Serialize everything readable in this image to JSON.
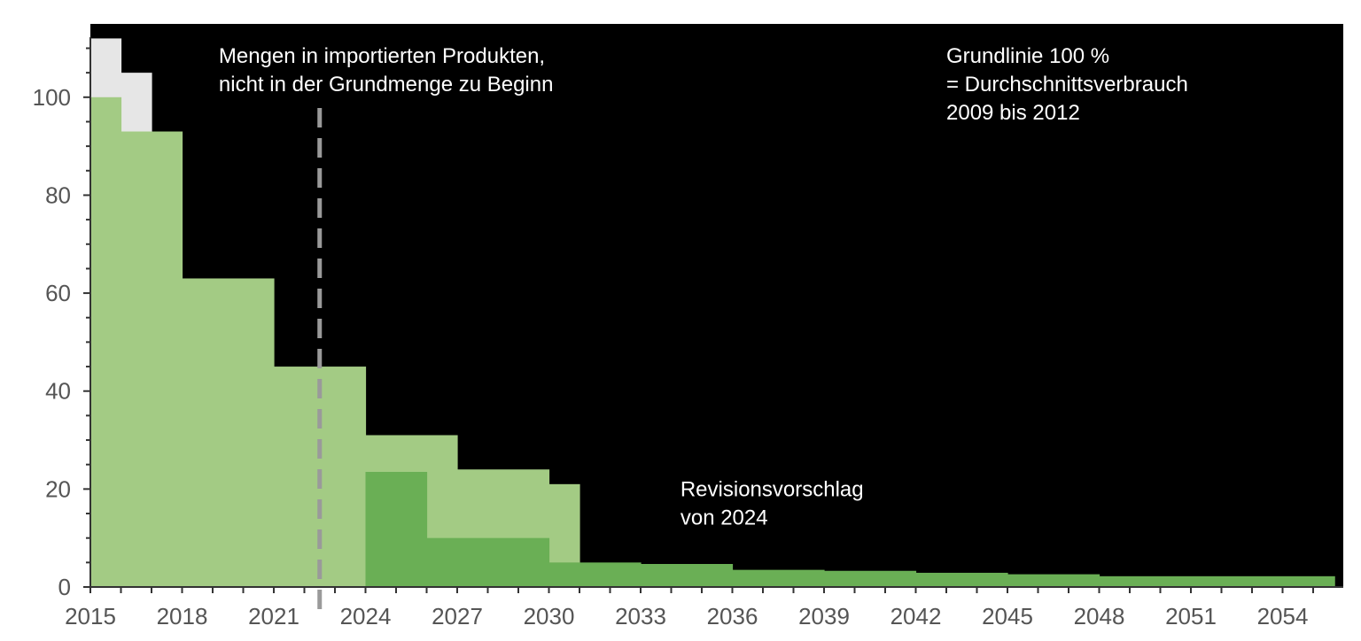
{
  "chart_data": {
    "type": "area",
    "title": "",
    "xlabel": "",
    "ylabel": "",
    "xlim": [
      2015,
      2055.7
    ],
    "ylim": [
      0,
      112
    ],
    "x_ticks": [
      "2015",
      "2018",
      "2021",
      "2024",
      "2027",
      "2030",
      "2033",
      "2036",
      "2039",
      "2042",
      "2045",
      "2048",
      "2051",
      "2054"
    ],
    "y_ticks": [
      "0",
      "20",
      "40",
      "60",
      "80",
      "100"
    ],
    "background_color": "#000000",
    "series": [
      {
        "color": "#e6e6e6",
        "steps": [
          {
            "x0": 2015,
            "x1": 2016,
            "y": 112
          },
          {
            "x0": 2016,
            "x1": 2017,
            "y": 105
          }
        ]
      },
      {
        "color": "#a3cb84",
        "steps": [
          {
            "x0": 2015,
            "x1": 2016,
            "y": 100
          },
          {
            "x0": 2016,
            "x1": 2018,
            "y": 93
          },
          {
            "x0": 2018,
            "x1": 2021,
            "y": 63
          },
          {
            "x0": 2021,
            "x1": 2024,
            "y": 45
          },
          {
            "x0": 2024,
            "x1": 2027,
            "y": 31
          },
          {
            "x0": 2027,
            "x1": 2030,
            "y": 24
          },
          {
            "x0": 2030,
            "x1": 2031,
            "y": 21
          }
        ]
      },
      {
        "color": "#6aaf55",
        "steps": [
          {
            "x0": 2024,
            "x1": 2026,
            "y": 23.5
          },
          {
            "x0": 2026,
            "x1": 2030,
            "y": 10
          },
          {
            "x0": 2030,
            "x1": 2033,
            "y": 5
          },
          {
            "x0": 2033,
            "x1": 2036,
            "y": 4.7
          },
          {
            "x0": 2036,
            "x1": 2039,
            "y": 3.5
          },
          {
            "x0": 2039,
            "x1": 2042,
            "y": 3.3
          },
          {
            "x0": 2042,
            "x1": 2045,
            "y": 2.9
          },
          {
            "x0": 2045,
            "x1": 2048,
            "y": 2.6
          },
          {
            "x0": 2048,
            "x1": 2055.7,
            "y": 2.2
          }
        ]
      }
    ],
    "reference_line": {
      "x": 2022.5,
      "style": "dashed",
      "color": "#9a9a9a"
    },
    "annotations": [
      {
        "lines": [
          "Mengen in importierten Produkten,",
          "nicht in der Grundmenge zu Beginn"
        ],
        "x": 2019.2,
        "y": 107
      },
      {
        "lines": [
          "Grundlinie 100 %",
          "= Durchschnittsverbrauch",
          "   2009 bis 2012"
        ],
        "x": 2043.0,
        "y": 107
      },
      {
        "lines": [
          "Revisionsvorschlag",
          "von 2024"
        ],
        "x": 2034.3,
        "y": 18.5
      }
    ]
  }
}
